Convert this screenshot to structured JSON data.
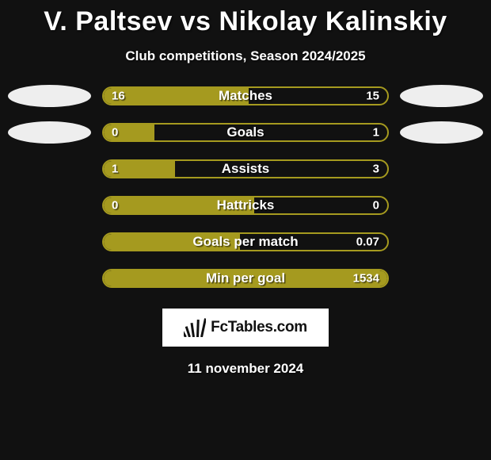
{
  "title": "V. Paltsev vs Nikolay Kalinskiy",
  "subtitle": "Club competitions, Season 2024/2025",
  "colors": {
    "bar_fill": "#a59a1f",
    "bar_border": "#a59a1f",
    "bar_bg": "#111111",
    "oval": "#eeeeee",
    "page_bg": "#111111",
    "text": "#ffffff",
    "logo_bg": "#ffffff"
  },
  "typography": {
    "title_fontsize": 34,
    "subtitle_fontsize": 17,
    "barlabel_fontsize": 17,
    "valuelabel_fontsize": 15
  },
  "rows": [
    {
      "label": "Matches",
      "left": "16",
      "right": "15",
      "fill_pct": 51,
      "show_ovals": true
    },
    {
      "label": "Goals",
      "left": "0",
      "right": "1",
      "fill_pct": 18,
      "show_ovals": true
    },
    {
      "label": "Assists",
      "left": "1",
      "right": "3",
      "fill_pct": 25,
      "show_ovals": false
    },
    {
      "label": "Hattricks",
      "left": "0",
      "right": "0",
      "fill_pct": 53,
      "show_ovals": false
    },
    {
      "label": "Goals per match",
      "left": "",
      "right": "0.07",
      "fill_pct": 48,
      "show_ovals": false
    },
    {
      "label": "Min per goal",
      "left": "",
      "right": "1534",
      "fill_pct": 100,
      "show_ovals": false
    }
  ],
  "footer": {
    "logo_text": "FcTables.com",
    "date": "11 november 2024"
  }
}
